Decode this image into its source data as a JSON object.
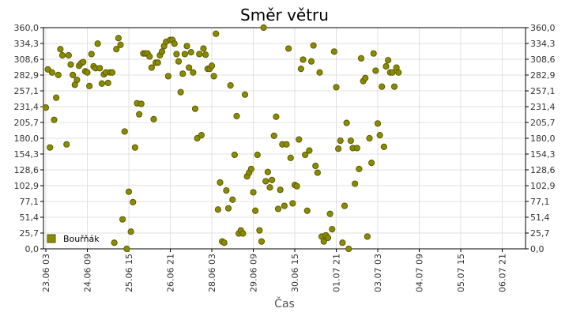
{
  "chart_data": {
    "type": "scatter",
    "title": "Směr větru",
    "xlabel": "Čas",
    "ylabel": "°",
    "ylim": [
      0,
      360
    ],
    "y_ticks": [
      "0,0",
      "25,7",
      "51,4",
      "77,1",
      "102,9",
      "128,6",
      "154,3",
      "180,0",
      "205,7",
      "231,4",
      "257,1",
      "282,9",
      "308,6",
      "334,3",
      "360,0"
    ],
    "x_ticks": [
      "23.06 03",
      "24.06 09",
      "25.06 15",
      "26.06 21",
      "28.06 03",
      "29.06 09",
      "30.06 15",
      "01.07 21",
      "03.07 03",
      "04.07 09",
      "05.07 15",
      "06.07 21"
    ],
    "x_unit": "tick index",
    "grid": true,
    "legend_position": "bottom-left",
    "colors": {
      "marker": "#8b8b00",
      "marker_edge": "#5c5c00",
      "grid": "#e0e0e0",
      "axis": "#000000"
    },
    "series": [
      {
        "name": "Bouřňák",
        "points": [
          [
            0.0,
            230
          ],
          [
            0.05,
            292
          ],
          [
            0.1,
            165
          ],
          [
            0.15,
            287
          ],
          [
            0.2,
            210
          ],
          [
            0.25,
            246
          ],
          [
            0.3,
            283
          ],
          [
            0.35,
            325
          ],
          [
            0.4,
            315
          ],
          [
            0.5,
            170
          ],
          [
            0.55,
            315
          ],
          [
            0.6,
            300
          ],
          [
            0.65,
            283
          ],
          [
            0.7,
            267
          ],
          [
            0.75,
            275
          ],
          [
            0.8,
            298
          ],
          [
            0.85,
            302
          ],
          [
            0.9,
            304
          ],
          [
            0.95,
            289
          ],
          [
            1.0,
            287
          ],
          [
            1.05,
            265
          ],
          [
            1.1,
            317
          ],
          [
            1.15,
            297
          ],
          [
            1.2,
            294
          ],
          [
            1.25,
            334
          ],
          [
            1.3,
            294
          ],
          [
            1.35,
            269
          ],
          [
            1.4,
            284
          ],
          [
            1.45,
            287
          ],
          [
            1.5,
            270
          ],
          [
            1.55,
            287
          ],
          [
            1.6,
            287
          ],
          [
            1.65,
            10
          ],
          [
            1.7,
            325
          ],
          [
            1.75,
            343
          ],
          [
            1.8,
            332
          ],
          [
            1.85,
            48
          ],
          [
            1.9,
            191
          ],
          [
            1.95,
            0
          ],
          [
            2.0,
            93
          ],
          [
            2.05,
            28
          ],
          [
            2.1,
            76
          ],
          [
            2.15,
            165
          ],
          [
            2.2,
            237
          ],
          [
            2.25,
            219
          ],
          [
            2.3,
            236
          ],
          [
            2.35,
            318
          ],
          [
            2.4,
            318
          ],
          [
            2.45,
            318
          ],
          [
            2.5,
            313
          ],
          [
            2.55,
            295
          ],
          [
            2.6,
            211
          ],
          [
            2.65,
            303
          ],
          [
            2.7,
            303
          ],
          [
            2.75,
            315
          ],
          [
            2.8,
            321
          ],
          [
            2.85,
            330
          ],
          [
            2.9,
            337
          ],
          [
            2.95,
            281
          ],
          [
            3.0,
            340
          ],
          [
            3.05,
            340
          ],
          [
            3.1,
            334
          ],
          [
            3.15,
            317
          ],
          [
            3.2,
            305
          ],
          [
            3.25,
            255
          ],
          [
            3.3,
            285
          ],
          [
            3.35,
            317
          ],
          [
            3.4,
            330
          ],
          [
            3.45,
            295
          ],
          [
            3.5,
            320
          ],
          [
            3.55,
            287
          ],
          [
            3.6,
            228
          ],
          [
            3.65,
            180
          ],
          [
            3.7,
            317
          ],
          [
            3.75,
            185
          ],
          [
            3.8,
            326
          ],
          [
            3.85,
            316
          ],
          [
            3.9,
            293
          ],
          [
            3.95,
            293
          ],
          [
            4.0,
            298
          ],
          [
            4.05,
            281
          ],
          [
            4.1,
            350
          ],
          [
            4.15,
            64
          ],
          [
            4.2,
            108
          ],
          [
            4.25,
            12
          ],
          [
            4.3,
            10
          ],
          [
            4.35,
            95
          ],
          [
            4.4,
            66
          ],
          [
            4.45,
            266
          ],
          [
            4.5,
            80
          ],
          [
            4.55,
            153
          ],
          [
            4.6,
            216
          ],
          [
            4.65,
            25
          ],
          [
            4.7,
            30
          ],
          [
            4.75,
            25
          ],
          [
            4.8,
            251
          ],
          [
            4.85,
            118
          ],
          [
            4.9,
            124
          ],
          [
            4.95,
            130
          ],
          [
            5.0,
            92
          ],
          [
            5.05,
            62
          ],
          [
            5.1,
            153
          ],
          [
            5.15,
            30
          ],
          [
            5.2,
            12
          ],
          [
            5.25,
            360
          ],
          [
            5.3,
            110
          ],
          [
            5.35,
            125
          ],
          [
            5.4,
            100
          ],
          [
            5.45,
            112
          ],
          [
            5.5,
            184
          ],
          [
            5.55,
            215
          ],
          [
            5.6,
            65
          ],
          [
            5.65,
            96
          ],
          [
            5.7,
            170
          ],
          [
            5.75,
            70
          ],
          [
            5.8,
            170
          ],
          [
            5.85,
            326
          ],
          [
            5.9,
            148
          ],
          [
            5.95,
            74
          ],
          [
            6.0,
            104
          ],
          [
            6.05,
            102
          ],
          [
            6.1,
            178
          ],
          [
            6.15,
            293
          ],
          [
            6.2,
            308
          ],
          [
            6.25,
            153
          ],
          [
            6.3,
            62
          ],
          [
            6.35,
            160
          ],
          [
            6.4,
            305
          ],
          [
            6.45,
            331
          ],
          [
            6.5,
            135
          ],
          [
            6.55,
            124
          ],
          [
            6.6,
            287
          ],
          [
            6.65,
            20
          ],
          [
            6.7,
            12
          ],
          [
            6.75,
            22
          ],
          [
            6.8,
            18
          ],
          [
            6.85,
            57
          ],
          [
            6.9,
            32
          ],
          [
            6.95,
            321
          ],
          [
            7.0,
            263
          ],
          [
            7.05,
            163
          ],
          [
            7.1,
            176
          ],
          [
            7.15,
            10
          ],
          [
            7.2,
            70
          ],
          [
            7.25,
            205
          ],
          [
            7.3,
            0
          ],
          [
            7.35,
            176
          ],
          [
            7.4,
            164
          ],
          [
            7.45,
            106
          ],
          [
            7.5,
            164
          ],
          [
            7.55,
            130
          ],
          [
            7.6,
            310
          ],
          [
            7.65,
            273
          ],
          [
            7.7,
            278
          ],
          [
            7.75,
            20
          ],
          [
            7.8,
            180
          ],
          [
            7.85,
            140
          ],
          [
            7.9,
            318
          ],
          [
            7.95,
            290
          ],
          [
            8.0,
            204
          ],
          [
            8.05,
            185
          ],
          [
            8.1,
            264
          ],
          [
            8.15,
            166
          ],
          [
            8.2,
            297
          ],
          [
            8.25,
            307
          ],
          [
            8.3,
            287
          ],
          [
            8.35,
            287
          ],
          [
            8.4,
            264
          ],
          [
            8.45,
            295
          ],
          [
            8.5,
            287
          ]
        ]
      }
    ]
  }
}
